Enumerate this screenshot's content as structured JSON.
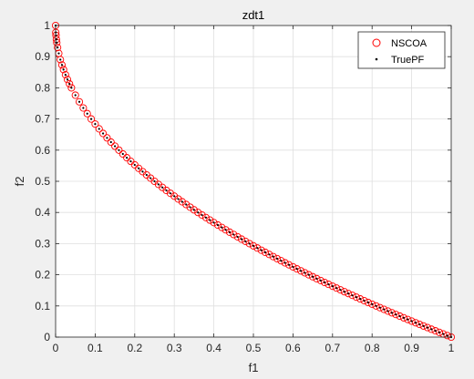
{
  "chart_data": {
    "type": "scatter",
    "title": "zdt1",
    "xlabel": "f1",
    "ylabel": "f2",
    "xlim": [
      0,
      1
    ],
    "ylim": [
      0,
      1
    ],
    "xticks": [
      0,
      0.1,
      0.2,
      0.3,
      0.4,
      0.5,
      0.6,
      0.7,
      0.8,
      0.9,
      1
    ],
    "yticks": [
      0,
      0.1,
      0.2,
      0.3,
      0.4,
      0.5,
      0.6,
      0.7,
      0.8,
      0.9,
      1
    ],
    "xtick_labels": [
      "0",
      "0.1",
      "0.2",
      "0.3",
      "0.4",
      "0.5",
      "0.6",
      "0.7",
      "0.8",
      "0.9",
      "1"
    ],
    "ytick_labels": [
      "0",
      "0.1",
      "0.2",
      "0.3",
      "0.4",
      "0.5",
      "0.6",
      "0.7",
      "0.8",
      "0.9",
      "1"
    ],
    "grid": true,
    "legend_position": "top-right",
    "series": [
      {
        "name": "NSCOA",
        "marker": "open-circle",
        "color": "#ff0000",
        "x": [
          0,
          0.0005,
          0.001,
          0.002,
          0.003,
          0.005,
          0.008,
          0.012,
          0.016,
          0.02,
          0.025,
          0.03,
          0.035,
          0.04,
          0.05,
          0.06,
          0.07,
          0.08,
          0.09,
          0.1,
          0.11,
          0.12,
          0.13,
          0.14,
          0.15,
          0.16,
          0.17,
          0.18,
          0.19,
          0.2,
          0.21,
          0.22,
          0.23,
          0.24,
          0.25,
          0.26,
          0.27,
          0.28,
          0.29,
          0.3,
          0.31,
          0.32,
          0.33,
          0.34,
          0.35,
          0.36,
          0.37,
          0.38,
          0.39,
          0.4,
          0.41,
          0.42,
          0.43,
          0.44,
          0.45,
          0.46,
          0.47,
          0.48,
          0.49,
          0.5,
          0.51,
          0.52,
          0.53,
          0.54,
          0.55,
          0.56,
          0.57,
          0.58,
          0.59,
          0.6,
          0.61,
          0.62,
          0.63,
          0.64,
          0.65,
          0.66,
          0.67,
          0.68,
          0.69,
          0.7,
          0.71,
          0.72,
          0.73,
          0.74,
          0.75,
          0.76,
          0.77,
          0.78,
          0.79,
          0.8,
          0.81,
          0.82,
          0.83,
          0.84,
          0.85,
          0.86,
          0.87,
          0.88,
          0.89,
          0.9,
          0.91,
          0.92,
          0.93,
          0.94,
          0.95,
          0.96,
          0.97,
          0.98,
          0.99,
          1
        ],
        "y": [
          1,
          0.9776,
          0.9684,
          0.9553,
          0.9452,
          0.9293,
          0.9106,
          0.8905,
          0.8735,
          0.8586,
          0.8419,
          0.8268,
          0.8129,
          0.8,
          0.7764,
          0.7551,
          0.7354,
          0.7172,
          0.7,
          0.6838,
          0.6683,
          0.6536,
          0.6394,
          0.6258,
          0.6127,
          0.6,
          0.5877,
          0.5757,
          0.5641,
          0.5528,
          0.5417,
          0.531,
          0.5204,
          0.5101,
          0.5,
          0.4901,
          0.4804,
          0.4708,
          0.4615,
          0.4523,
          0.4432,
          0.4343,
          0.4255,
          0.4169,
          0.4084,
          0.4,
          0.3917,
          0.3836,
          0.3755,
          0.3675,
          0.3597,
          0.3519,
          0.3443,
          0.3367,
          0.3292,
          0.3218,
          0.3144,
          0.3072,
          0.3,
          0.2929,
          0.2859,
          0.2789,
          0.272,
          0.2652,
          0.2584,
          0.2517,
          0.245,
          0.2384,
          0.2319,
          0.2254,
          0.219,
          0.2126,
          0.2063,
          0.2,
          0.1938,
          0.1876,
          0.1815,
          0.1754,
          0.1693,
          0.1633,
          0.1574,
          0.1515,
          0.1456,
          0.1398,
          0.134,
          0.1282,
          0.1225,
          0.1168,
          0.1112,
          0.1056,
          0.1,
          0.0945,
          0.089,
          0.0835,
          0.078,
          0.0726,
          0.0673,
          0.0619,
          0.0566,
          0.0513,
          0.046,
          0.0408,
          0.0356,
          0.0305,
          0.0253,
          0.0202,
          0.0151,
          0.01,
          0.005,
          0
        ]
      },
      {
        "name": "TruePF",
        "marker": "dot",
        "color": "#000000",
        "x": [
          0,
          0.0005,
          0.001,
          0.002,
          0.003,
          0.005,
          0.008,
          0.012,
          0.016,
          0.02,
          0.025,
          0.03,
          0.035,
          0.04,
          0.05,
          0.06,
          0.07,
          0.08,
          0.09,
          0.1,
          0.11,
          0.12,
          0.13,
          0.14,
          0.15,
          0.16,
          0.17,
          0.18,
          0.19,
          0.2,
          0.21,
          0.22,
          0.23,
          0.24,
          0.25,
          0.26,
          0.27,
          0.28,
          0.29,
          0.3,
          0.31,
          0.32,
          0.33,
          0.34,
          0.35,
          0.36,
          0.37,
          0.38,
          0.39,
          0.4,
          0.41,
          0.42,
          0.43,
          0.44,
          0.45,
          0.46,
          0.47,
          0.48,
          0.49,
          0.5,
          0.51,
          0.52,
          0.53,
          0.54,
          0.55,
          0.56,
          0.57,
          0.58,
          0.59,
          0.6,
          0.61,
          0.62,
          0.63,
          0.64,
          0.65,
          0.66,
          0.67,
          0.68,
          0.69,
          0.7,
          0.71,
          0.72,
          0.73,
          0.74,
          0.75,
          0.76,
          0.77,
          0.78,
          0.79,
          0.8,
          0.81,
          0.82,
          0.83,
          0.84,
          0.85,
          0.86,
          0.87,
          0.88,
          0.89,
          0.9,
          0.91,
          0.92,
          0.93,
          0.94,
          0.95,
          0.96,
          0.97,
          0.98,
          0.99,
          1
        ],
        "y": [
          1,
          0.9776,
          0.9684,
          0.9553,
          0.9452,
          0.9293,
          0.9106,
          0.8905,
          0.8735,
          0.8586,
          0.8419,
          0.8268,
          0.8129,
          0.8,
          0.7764,
          0.7551,
          0.7354,
          0.7172,
          0.7,
          0.6838,
          0.6683,
          0.6536,
          0.6394,
          0.6258,
          0.6127,
          0.6,
          0.5877,
          0.5757,
          0.5641,
          0.5528,
          0.5417,
          0.531,
          0.5204,
          0.5101,
          0.5,
          0.4901,
          0.4804,
          0.4708,
          0.4615,
          0.4523,
          0.4432,
          0.4343,
          0.4255,
          0.4169,
          0.4084,
          0.4,
          0.3917,
          0.3836,
          0.3755,
          0.3675,
          0.3597,
          0.3519,
          0.3443,
          0.3367,
          0.3292,
          0.3218,
          0.3144,
          0.3072,
          0.3,
          0.2929,
          0.2859,
          0.2789,
          0.272,
          0.2652,
          0.2584,
          0.2517,
          0.245,
          0.2384,
          0.2319,
          0.2254,
          0.219,
          0.2126,
          0.2063,
          0.2,
          0.1938,
          0.1876,
          0.1815,
          0.1754,
          0.1693,
          0.1633,
          0.1574,
          0.1515,
          0.1456,
          0.1398,
          0.134,
          0.1282,
          0.1225,
          0.1168,
          0.1112,
          0.1056,
          0.1,
          0.0945,
          0.089,
          0.0835,
          0.078,
          0.0726,
          0.0673,
          0.0619,
          0.0566,
          0.0513,
          0.046,
          0.0408,
          0.0356,
          0.0305,
          0.0253,
          0.0202,
          0.0151,
          0.01,
          0.005,
          0
        ]
      }
    ]
  }
}
